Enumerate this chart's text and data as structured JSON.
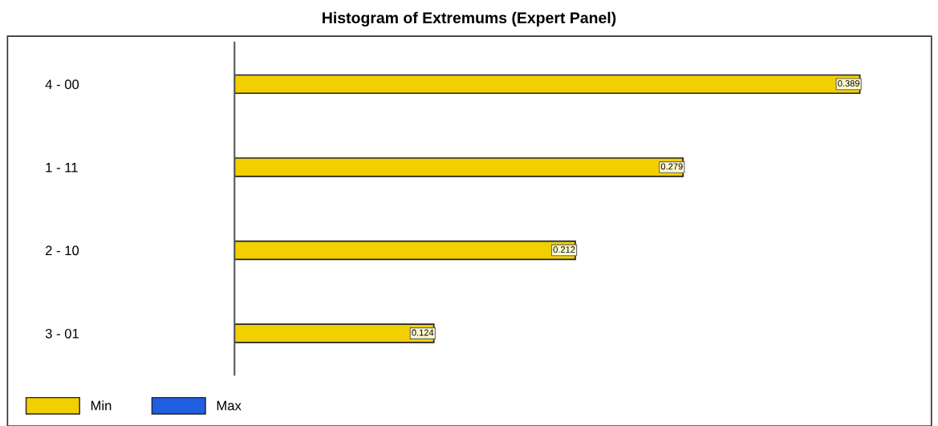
{
  "chart_data": {
    "type": "bar",
    "title": "Histogram of Extremums (Expert Panel)",
    "orientation": "horizontal",
    "categories": [
      "4 - 00",
      "1 - 11",
      "2 - 10",
      "3 - 01"
    ],
    "series": [
      {
        "name": "Min",
        "color": "#f2d000",
        "values": [
          0.389,
          0.279,
          0.212,
          0.124
        ]
      },
      {
        "name": "Max",
        "color": "#1f5fe0",
        "values": [
          null,
          null,
          null,
          null
        ]
      }
    ],
    "data_labels": true,
    "legend": "bottom left",
    "tick_labels": "y"
  }
}
